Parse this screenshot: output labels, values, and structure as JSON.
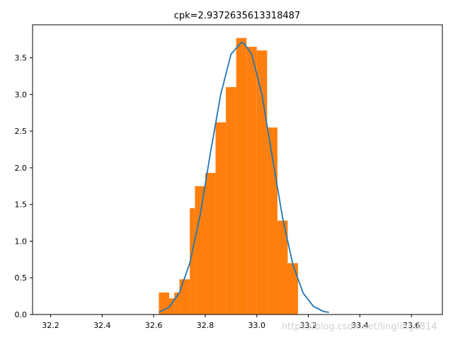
{
  "chart_data": {
    "type": "bar",
    "title": "cpk=2.9372635613318487",
    "xlabel": "",
    "ylabel": "",
    "xlim": [
      32.13,
      33.72
    ],
    "ylim": [
      0,
      3.95
    ],
    "xticks": [
      32.2,
      32.4,
      32.6,
      32.8,
      33.0,
      33.2,
      33.4,
      33.6
    ],
    "xtick_labels": [
      "32.2",
      "32.4",
      "32.6",
      "32.8",
      "33.0",
      "33.2",
      "33.4",
      "33.6"
    ],
    "yticks": [
      0.0,
      0.5,
      1.0,
      1.5,
      2.0,
      2.5,
      3.0,
      3.5
    ],
    "ytick_labels": [
      "0.0",
      "0.5",
      "1.0",
      "1.5",
      "2.0",
      "2.5",
      "3.0",
      "3.5"
    ],
    "grid": false,
    "histogram": {
      "color": "#ff7f0e",
      "bin_edges": [
        32.62,
        32.66,
        32.68,
        32.7,
        32.74,
        32.76,
        32.8,
        32.84,
        32.88,
        32.92,
        32.96,
        33.0,
        33.04,
        33.08,
        33.12,
        33.16
      ],
      "values": [
        0.3,
        0.22,
        0.3,
        0.48,
        1.45,
        1.75,
        1.93,
        2.62,
        3.1,
        3.77,
        3.65,
        3.6,
        2.55,
        1.28,
        0.7
      ]
    },
    "normal_curve": {
      "color": "#1f77b4",
      "x": [
        32.62,
        32.66,
        32.7,
        32.74,
        32.78,
        32.82,
        32.86,
        32.9,
        32.94,
        32.95,
        32.98,
        33.02,
        33.06,
        33.1,
        33.14,
        33.18,
        33.22,
        33.26,
        33.28
      ],
      "y": [
        0.03,
        0.1,
        0.3,
        0.7,
        1.35,
        2.2,
        3.0,
        3.55,
        3.71,
        3.7,
        3.55,
        3.0,
        2.15,
        1.32,
        0.68,
        0.29,
        0.11,
        0.04,
        0.03
      ]
    }
  },
  "watermark": "https://blog.csdn.net/lingling0814"
}
